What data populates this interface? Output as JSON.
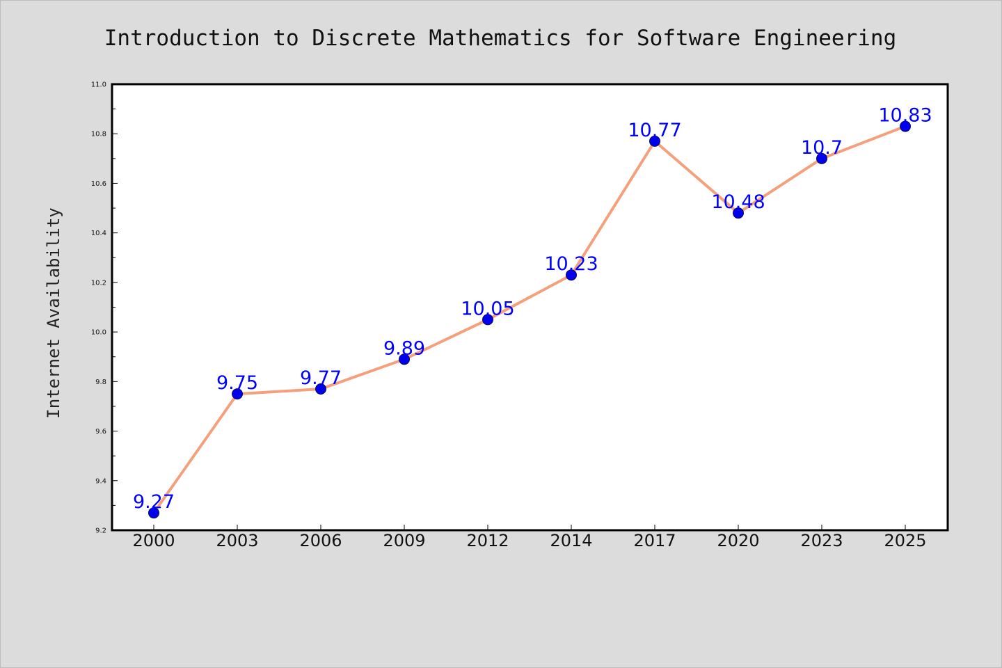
{
  "chart_data": {
    "type": "line",
    "title": "Introduction to Discrete Mathematics for Software Engineering",
    "xlabel": "",
    "ylabel": "Internet Availability",
    "categories": [
      "2000",
      "2003",
      "2006",
      "2009",
      "2012",
      "2014",
      "2017",
      "2020",
      "2023",
      "2025"
    ],
    "series": [
      {
        "values": [
          9.27,
          9.75,
          9.77,
          9.89,
          10.05,
          10.23,
          10.77,
          10.48,
          10.7,
          10.83
        ],
        "labels": [
          "9.27",
          "9.75",
          "9.77",
          "9.89",
          "10.05",
          "10.23",
          "10.77",
          "10.48",
          "10.7",
          "10.83"
        ]
      }
    ],
    "ylim": [
      9.2,
      11.0
    ],
    "yticks": [
      "9.2",
      "9.4",
      "9.6",
      "9.8",
      "10.0",
      "10.2",
      "10.4",
      "10.6",
      "10.8",
      "11.0"
    ],
    "grid": false,
    "legend": "none",
    "colors": {
      "line": "#f4a07c",
      "marker": "#0000ee",
      "marker_edge": "#0a0a55",
      "data_label": "#0000ff",
      "plot_background": "#ffffff",
      "page_background": "#dcdcdc"
    }
  }
}
